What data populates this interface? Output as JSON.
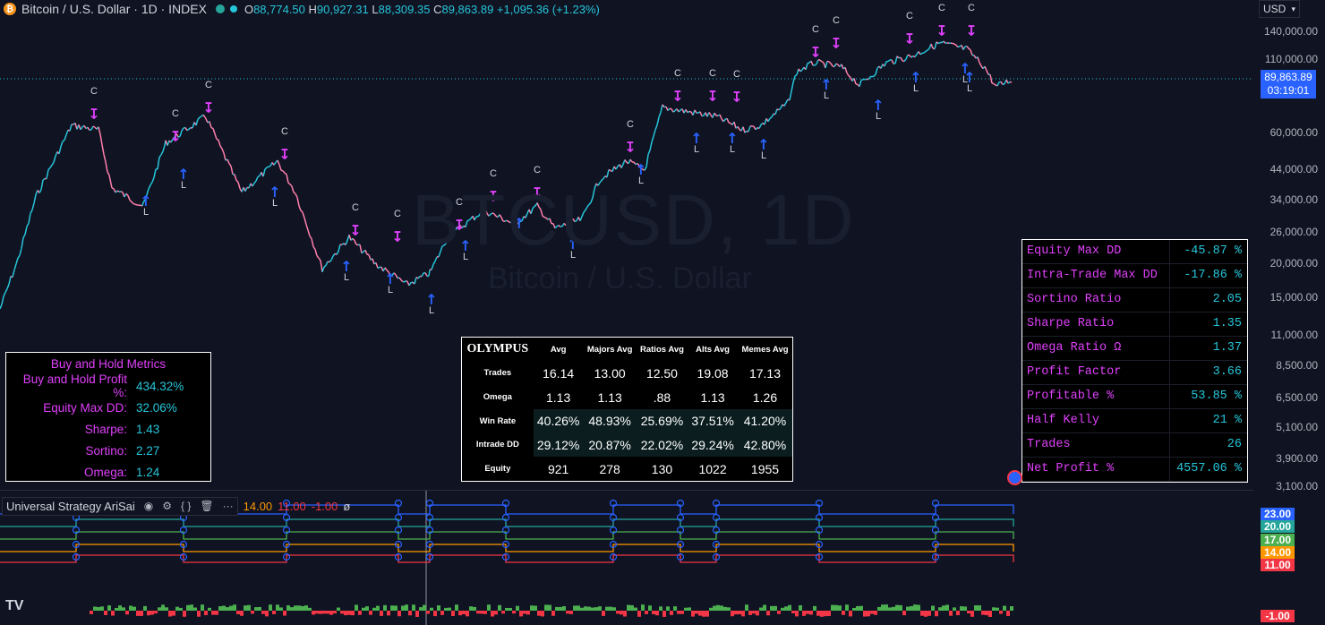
{
  "header": {
    "symbol_title": "Bitcoin / U.S. Dollar · 1D · INDEX",
    "btc_icon": "btc-icon",
    "ohlc": {
      "o_label": "O",
      "o": "88,774.50",
      "h_label": "H",
      "h": "90,927.31",
      "l_label": "L",
      "l": "88,309.35",
      "c_label": "C",
      "c": "89,863.89",
      "change": "+1,095.36 (+1.23%)"
    }
  },
  "currency": {
    "label": "USD"
  },
  "price_axis": {
    "labels": [
      "140,000.00",
      "110,000.00",
      "60,000.00",
      "44,000.00",
      "34,000.00",
      "26,000.00",
      "20,000.00",
      "15,000.00",
      "11,000.00",
      "8,500.00",
      "6,500.00",
      "5,100.00",
      "3,900.00",
      "3,100.00"
    ],
    "last_price": "89,863.89",
    "countdown": "03:19:01"
  },
  "watermark": {
    "symbol": "BTCUSD, 1D",
    "name": "Bitcoin / U.S. Dollar"
  },
  "buy_hold": {
    "title": "Buy and Hold Metrics",
    "rows": [
      {
        "label": "Buy and Hold Profit %:",
        "value": "434.32%"
      },
      {
        "label": "Equity Max DD:",
        "value": "32.06%"
      },
      {
        "label": "Sharpe:",
        "value": "1.43"
      },
      {
        "label": "Sortino:",
        "value": "2.27"
      },
      {
        "label": "Omega:",
        "value": "1.24"
      }
    ]
  },
  "olympus": {
    "title": "OLYMPUS",
    "headers": [
      "Avg",
      "Majors Avg",
      "Ratios Avg",
      "Alts Avg",
      "Memes Avg"
    ],
    "rows": [
      {
        "label": "Trades",
        "values": [
          "16.14",
          "13.00",
          "12.50",
          "19.08",
          "17.13"
        ]
      },
      {
        "label": "Omega",
        "values": [
          "1.13",
          "1.13",
          ".88",
          "1.13",
          "1.26"
        ]
      },
      {
        "label": "Win Rate",
        "values": [
          "40.26%",
          "48.93%",
          "25.69%",
          "37.51%",
          "41.20%"
        ]
      },
      {
        "label": "Intrade DD",
        "values": [
          "29.12%",
          "20.87%",
          "22.02%",
          "29.24%",
          "42.80%"
        ]
      },
      {
        "label": "Equity",
        "values": [
          "921",
          "278",
          "130",
          "1022",
          "1955"
        ]
      }
    ]
  },
  "metrics": [
    {
      "label": "Equity Max DD",
      "value": "-45.87 %"
    },
    {
      "label": "Intra-Trade Max DD",
      "value": "-17.86 %"
    },
    {
      "label": "Sortino Ratio",
      "value": "2.05"
    },
    {
      "label": "Sharpe Ratio",
      "value": "1.35"
    },
    {
      "label": "Omega Ratio Ω",
      "value": "1.37"
    },
    {
      "label": "Profit Factor",
      "value": "3.66"
    },
    {
      "label": "Profitable %",
      "value": "53.85 %"
    },
    {
      "label": "Half Kelly",
      "value": "21 %"
    },
    {
      "label": "Trades",
      "value": "26"
    },
    {
      "label": "Net Profit %",
      "value": "4557.06 %"
    }
  ],
  "indicator": {
    "name": "Universal Strategy AriSai",
    "v1": "14.00",
    "v2": "11.00",
    "v3": "-1.00",
    "v4": "ø",
    "icons": [
      "eye-icon",
      "settings-icon",
      "source-code-icon",
      "trash-icon",
      "more-icon"
    ]
  },
  "indicator_badges": [
    {
      "value": "23.00",
      "color": "#2962ff"
    },
    {
      "value": "20.00",
      "color": "#26a69a"
    },
    {
      "value": "17.00",
      "color": "#4caf50"
    },
    {
      "value": "14.00",
      "color": "#ff9800"
    },
    {
      "value": "11.00",
      "color": "#f23645"
    },
    {
      "value": "-1.00",
      "color": "#f23645"
    }
  ],
  "colors": {
    "up": "#26c6da",
    "down": "#ff80ab",
    "short": "#e040fb",
    "long": "#2962ff"
  },
  "signals": {
    "close_label": "C",
    "long_label": "L"
  },
  "branding": {
    "logo": "TV"
  }
}
